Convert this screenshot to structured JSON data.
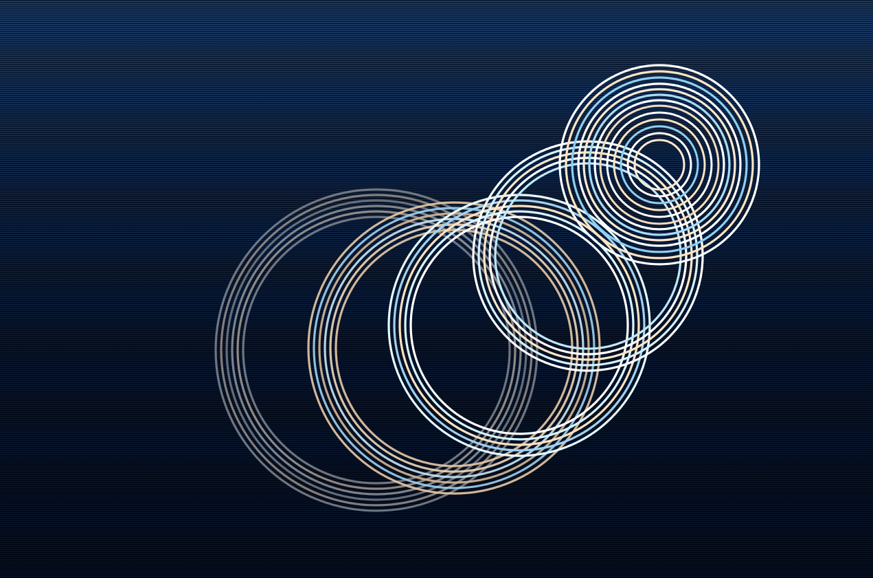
{
  "scene": {
    "background_top": "#1b3f6e",
    "background_bottom": "#020816",
    "ring_groups": [
      {
        "name": "ring-group-1",
        "palette": [
          "#8a8f96",
          "#a39a90",
          "#7d858e",
          "#9aa0a6",
          "#b0a79d"
        ],
        "opacity": 0.8
      },
      {
        "name": "ring-group-2",
        "palette": [
          "#e8c9a6",
          "#9fd2f0",
          "#d6b998",
          "#c8e6f5",
          "#f0d7b8"
        ],
        "opacity": 0.9
      },
      {
        "name": "ring-group-3",
        "palette": [
          "#e6fbff",
          "#9fd2f0",
          "#ffe3c0",
          "#d8f4ff",
          "#ffffff"
        ],
        "opacity": 1.0
      },
      {
        "name": "ring-group-4",
        "palette": [
          "#ffffff",
          "#d6f2ff",
          "#ffe7c8",
          "#ffffff",
          "#bfe8fb"
        ],
        "opacity": 1.0
      },
      {
        "name": "ring-group-5",
        "palette": [
          "#ffffff",
          "#ffe5c4",
          "#8ed0f2",
          "#ffffff",
          "#ffe9cf",
          "#a8dcf5",
          "#ffffff",
          "#f6dcbc"
        ],
        "opacity": 1.0
      }
    ]
  }
}
